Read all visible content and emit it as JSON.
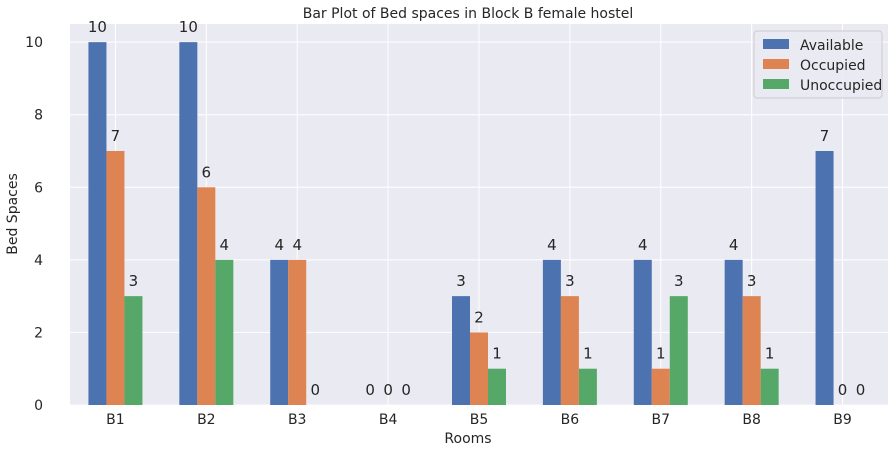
{
  "chart_data": {
    "type": "bar",
    "title": "Bar Plot of Bed spaces in Block B female hostel",
    "xlabel": "Rooms",
    "ylabel": "Bed Spaces",
    "categories": [
      "B1",
      "B2",
      "B3",
      "B4",
      "B5",
      "B6",
      "B7",
      "B8",
      "B9"
    ],
    "series": [
      {
        "name": "Available",
        "values": [
          10,
          10,
          4,
          0,
          3,
          4,
          4,
          4,
          7
        ],
        "color": "#4c72b0"
      },
      {
        "name": "Occupied",
        "values": [
          7,
          6,
          4,
          0,
          2,
          3,
          1,
          3,
          0
        ],
        "color": "#dd8452"
      },
      {
        "name": "Unoccupied",
        "values": [
          3,
          4,
          0,
          0,
          1,
          1,
          3,
          1,
          0
        ],
        "color": "#55a868"
      }
    ],
    "ylim": [
      0,
      10.5
    ],
    "yticks": [
      0,
      2,
      4,
      6,
      8,
      10
    ],
    "grid": true,
    "legend_position": "top-right",
    "background": "#eaeaf2"
  }
}
